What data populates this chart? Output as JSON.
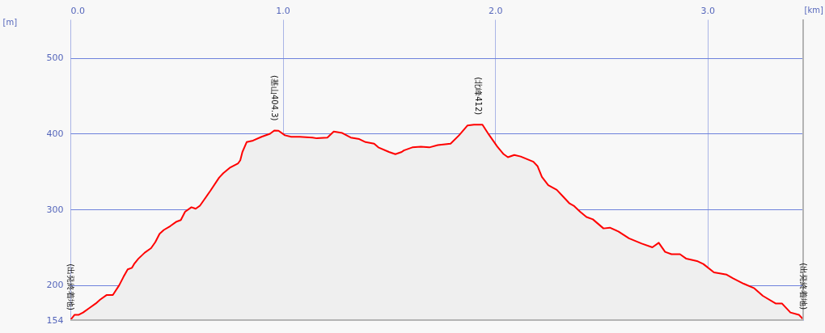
{
  "chart_data": {
    "type": "area",
    "xlabel": "[km]",
    "ylabel": "[m]",
    "xlim": [
      0,
      3.45
    ],
    "ylim": [
      154,
      551
    ],
    "xticks": [
      {
        "value": 0,
        "label": "0.0"
      },
      {
        "value": 1,
        "label": "1.0"
      },
      {
        "value": 2,
        "label": "2.0"
      },
      {
        "value": 3,
        "label": "3.0"
      }
    ],
    "yticks": [
      154,
      200,
      300,
      400,
      500
    ],
    "grid": true,
    "x": [
      0,
      0.02,
      0.04,
      0.06,
      0.09,
      0.12,
      0.14,
      0.17,
      0.2,
      0.23,
      0.25,
      0.27,
      0.29,
      0.3,
      0.32,
      0.35,
      0.38,
      0.4,
      0.42,
      0.44,
      0.47,
      0.5,
      0.52,
      0.54,
      0.57,
      0.59,
      0.61,
      0.63,
      0.66,
      0.7,
      0.72,
      0.75,
      0.79,
      0.8,
      0.81,
      0.83,
      0.86,
      0.9,
      0.94,
      0.96,
      0.98,
      1.01,
      1.04,
      1.08,
      1.14,
      1.16,
      1.21,
      1.24,
      1.28,
      1.32,
      1.36,
      1.39,
      1.43,
      1.45,
      1.5,
      1.53,
      1.56,
      1.57,
      1.61,
      1.65,
      1.69,
      1.73,
      1.79,
      1.83,
      1.87,
      1.9,
      1.94,
      1.97,
      2.01,
      2.04,
      2.06,
      2.09,
      2.12,
      2.18,
      2.2,
      2.22,
      2.25,
      2.29,
      2.32,
      2.35,
      2.37,
      2.4,
      2.43,
      2.46,
      2.51,
      2.54,
      2.58,
      2.63,
      2.69,
      2.74,
      2.77,
      2.8,
      2.83,
      2.87,
      2.9,
      2.95,
      2.98,
      3.03,
      3.09,
      3.12,
      3.17,
      3.22,
      3.26,
      3.32,
      3.35,
      3.39,
      3.43,
      3.45
    ],
    "series": [
      {
        "color": "#ff0000",
        "values": [
          154,
          161,
          161,
          164,
          170,
          176,
          181,
          187,
          187,
          200,
          211,
          221,
          223,
          228,
          235,
          243,
          249,
          257,
          268,
          273,
          278,
          284,
          286,
          297,
          303,
          301,
          305,
          313,
          325,
          342,
          348,
          355,
          361,
          365,
          376,
          389,
          391,
          396,
          400,
          404.3,
          404,
          398,
          396,
          396,
          395,
          394,
          395,
          403,
          401,
          395,
          393,
          389,
          387,
          382,
          376,
          373,
          376,
          378,
          382,
          383,
          382,
          385,
          387,
          398,
          411,
          412,
          412,
          399,
          383,
          373,
          369,
          372,
          370,
          363,
          357,
          343,
          332,
          326,
          317,
          308,
          305,
          297,
          290,
          287,
          275,
          276,
          271,
          262,
          255,
          250,
          256,
          244,
          241,
          241,
          235,
          232,
          228,
          217,
          214,
          209,
          202,
          196,
          186,
          176,
          176,
          164,
          161,
          155
        ]
      }
    ],
    "annotations": [
      {
        "text": "(出発終着地)",
        "x": 0,
        "y": 154
      },
      {
        "text": "(基山404.3)",
        "x": 0.96,
        "y": 404.3
      },
      {
        "text": "(北峰412)",
        "x": 1.92,
        "y": 412
      },
      {
        "text": "(出発終着地)",
        "x": 3.45,
        "y": 155
      }
    ]
  }
}
